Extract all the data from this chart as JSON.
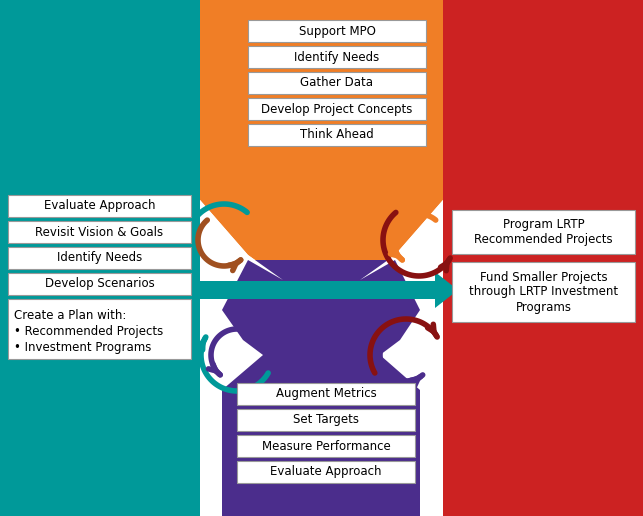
{
  "bg_color": "#ffffff",
  "left_bg_color": "#009999",
  "top_center_bg_color": "#F07E26",
  "right_bg_color": "#CC2222",
  "purple_color": "#4B2D8C",
  "teal_color": "#009999",
  "figsize": [
    6.43,
    5.16
  ],
  "dpi": 100,
  "upwp_boxes": [
    "Support MPO",
    "Identify Needs",
    "Gather Data",
    "Develop Project Concepts",
    "Think Ahead"
  ],
  "lrtp_boxes": [
    "Evaluate Approach",
    "Revisit Vision & Goals",
    "Identify Needs",
    "Develop Scenarios"
  ],
  "lrtp_bullet_title": "Create a Plan with:",
  "lrtp_bullets": [
    "• Recommended Projects",
    "• Investment Programs"
  ],
  "tip_boxes": [
    "Program LRTP\nRecommended Projects",
    "Fund Smaller Projects\nthrough LRTP Investment\nPrograms"
  ],
  "perf_boxes": [
    "Augment Metrics",
    "Set Targets",
    "Measure Performance",
    "Evaluate Approach"
  ]
}
